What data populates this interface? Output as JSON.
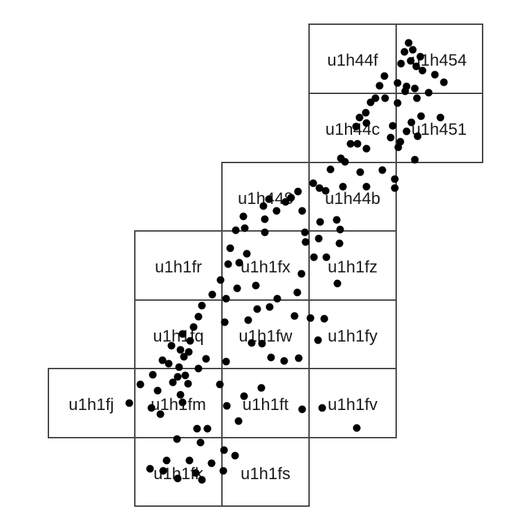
{
  "colors": {
    "grid_line": "#444444",
    "point": "#000000",
    "label": "#1a1a1a",
    "background": "#ffffff"
  },
  "cells": [
    {
      "id": "u1h44f",
      "label": "u1h44f"
    },
    {
      "id": "u1h454",
      "label": "u1h454"
    },
    {
      "id": "u1h44c",
      "label": "u1h44c"
    },
    {
      "id": "u1h451",
      "label": "u1h451"
    },
    {
      "id": "u1h448",
      "label": "u1h448"
    },
    {
      "id": "u1h44b",
      "label": "u1h44b"
    },
    {
      "id": "u1h1fr",
      "label": "u1h1fr"
    },
    {
      "id": "u1h1fx",
      "label": "u1h1fx"
    },
    {
      "id": "u1h1fz",
      "label": "u1h1fz"
    },
    {
      "id": "u1h1fq",
      "label": "u1h1fq"
    },
    {
      "id": "u1h1fw",
      "label": "u1h1fw"
    },
    {
      "id": "u1h1fy",
      "label": "u1h1fy"
    },
    {
      "id": "u1h1fj",
      "label": "u1h1fj"
    },
    {
      "id": "u1h1fm",
      "label": "u1h1fm"
    },
    {
      "id": "u1h1ft",
      "label": "u1h1ft"
    },
    {
      "id": "u1h1fv",
      "label": "u1h1fv"
    },
    {
      "id": "u1h1fk",
      "label": "u1h1fk"
    },
    {
      "id": "u1h1fs",
      "label": "u1h1fs"
    }
  ],
  "point_count": 140
}
